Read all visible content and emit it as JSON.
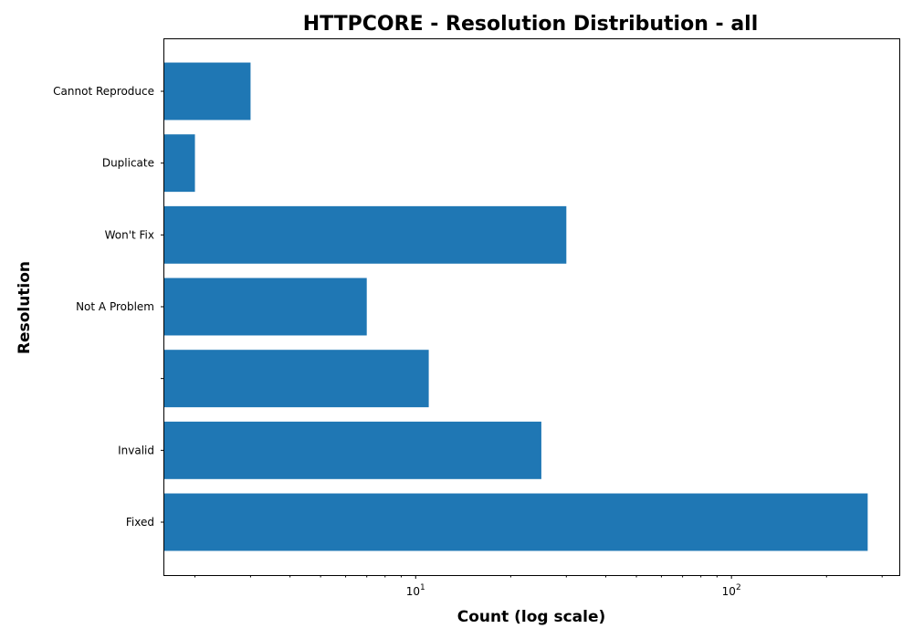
{
  "chart_data": {
    "type": "bar",
    "orientation": "horizontal",
    "title": "HTTPCORE - Resolution Distribution - all",
    "xlabel": "Count (log scale)",
    "ylabel": "Resolution",
    "x_scale": "log",
    "xlim": [
      1.6,
      340
    ],
    "x_ticks": [
      10,
      100
    ],
    "grid": false,
    "bar_color": "#1f77b4",
    "categories": [
      "Cannot Reproduce",
      "Duplicate",
      "Won't Fix",
      "Not A Problem",
      "",
      "Invalid",
      "Fixed"
    ],
    "values": [
      3,
      2,
      30,
      7,
      11,
      25,
      270
    ]
  }
}
